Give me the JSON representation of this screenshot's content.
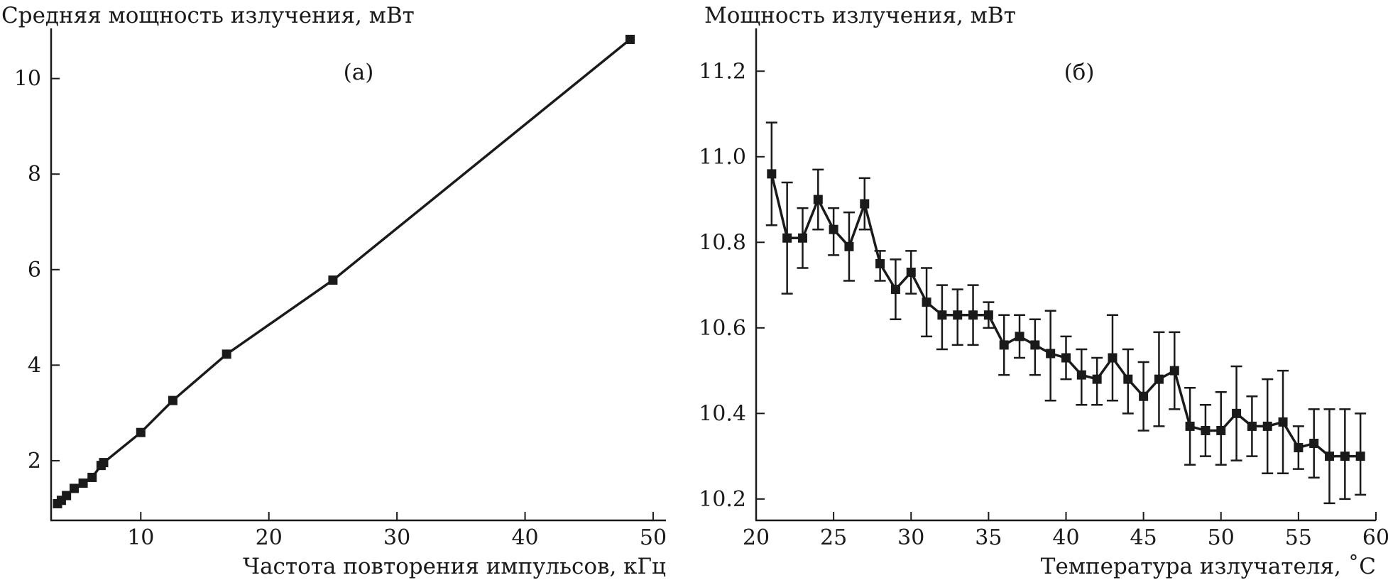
{
  "colors": {
    "ink": "#1a1a1a",
    "background": "#ffffff"
  },
  "chart_data": [
    {
      "type": "line",
      "panel_label": "(а)",
      "ylabel": "Средняя мощность излучения, мВт",
      "xlabel": "Частота повторения импульсов, кГц",
      "xlim": [
        3,
        51
      ],
      "ylim": [
        0.75,
        11.05
      ],
      "x_ticks": [
        10,
        20,
        30,
        40,
        50
      ],
      "y_ticks": [
        2,
        4,
        6,
        8,
        10
      ],
      "x_tick_labels": [
        "10",
        "20",
        "30",
        "40",
        "50"
      ],
      "y_tick_labels": [
        "2",
        "4",
        "6",
        "8",
        "10"
      ],
      "grid": false,
      "marker": "square",
      "x": [
        3.5,
        3.8,
        4.2,
        4.8,
        5.5,
        6.2,
        6.9,
        7.1,
        10.0,
        12.5,
        16.7,
        25.0,
        48.2
      ],
      "y": [
        1.1,
        1.17,
        1.27,
        1.42,
        1.53,
        1.65,
        1.9,
        1.96,
        2.59,
        3.26,
        4.23,
        5.78,
        10.82
      ]
    },
    {
      "type": "line",
      "panel_label": "(б)",
      "ylabel": "Мощность излучения, мВт",
      "xlabel": "Температура излучателя, ˚С",
      "xlim": [
        20,
        60
      ],
      "ylim": [
        10.15,
        11.3
      ],
      "x_ticks": [
        20,
        25,
        30,
        35,
        40,
        45,
        50,
        55,
        60
      ],
      "y_ticks": [
        10.2,
        10.4,
        10.6,
        10.8,
        11.0,
        11.2
      ],
      "x_tick_labels": [
        "20",
        "25",
        "30",
        "35",
        "40",
        "45",
        "50",
        "55",
        "60"
      ],
      "y_tick_labels": [
        "10.2",
        "10.4",
        "10.6",
        "10.8",
        "11.0",
        "11.2"
      ],
      "grid": false,
      "marker": "square",
      "error_bars": true,
      "x": [
        21,
        22,
        23,
        24,
        25,
        26,
        27,
        28,
        29,
        30,
        31,
        32,
        33,
        34,
        35,
        36,
        37,
        38,
        39,
        40,
        41,
        42,
        43,
        44,
        45,
        46,
        47,
        48,
        49,
        50,
        51,
        52,
        53,
        54,
        55,
        56,
        57,
        58,
        59
      ],
      "y": [
        10.96,
        10.81,
        10.81,
        10.9,
        10.83,
        10.79,
        10.89,
        10.75,
        10.69,
        10.73,
        10.66,
        10.63,
        10.63,
        10.63,
        10.63,
        10.56,
        10.58,
        10.56,
        10.54,
        10.53,
        10.49,
        10.48,
        10.53,
        10.48,
        10.44,
        10.48,
        10.5,
        10.37,
        10.36,
        10.36,
        10.4,
        10.37,
        10.37,
        10.38,
        10.32,
        10.33,
        10.3,
        10.3,
        10.3
      ],
      "y_upper": [
        11.08,
        10.94,
        10.88,
        10.97,
        10.88,
        10.87,
        10.95,
        10.78,
        10.76,
        10.78,
        10.74,
        10.7,
        10.69,
        10.7,
        10.66,
        10.63,
        10.63,
        10.62,
        10.64,
        10.58,
        10.55,
        10.53,
        10.63,
        10.55,
        10.52,
        10.59,
        10.59,
        10.46,
        10.42,
        10.45,
        10.51,
        10.44,
        10.48,
        10.5,
        10.37,
        10.41,
        10.41,
        10.41,
        10.4
      ],
      "y_lower": [
        10.84,
        10.68,
        10.74,
        10.83,
        10.77,
        10.71,
        10.83,
        10.71,
        10.62,
        10.68,
        10.58,
        10.55,
        10.56,
        10.56,
        10.6,
        10.49,
        10.53,
        10.49,
        10.43,
        10.48,
        10.42,
        10.42,
        10.43,
        10.4,
        10.36,
        10.37,
        10.41,
        10.28,
        10.3,
        10.28,
        10.29,
        10.3,
        10.26,
        10.26,
        10.27,
        10.25,
        10.19,
        10.2,
        10.21
      ]
    }
  ]
}
